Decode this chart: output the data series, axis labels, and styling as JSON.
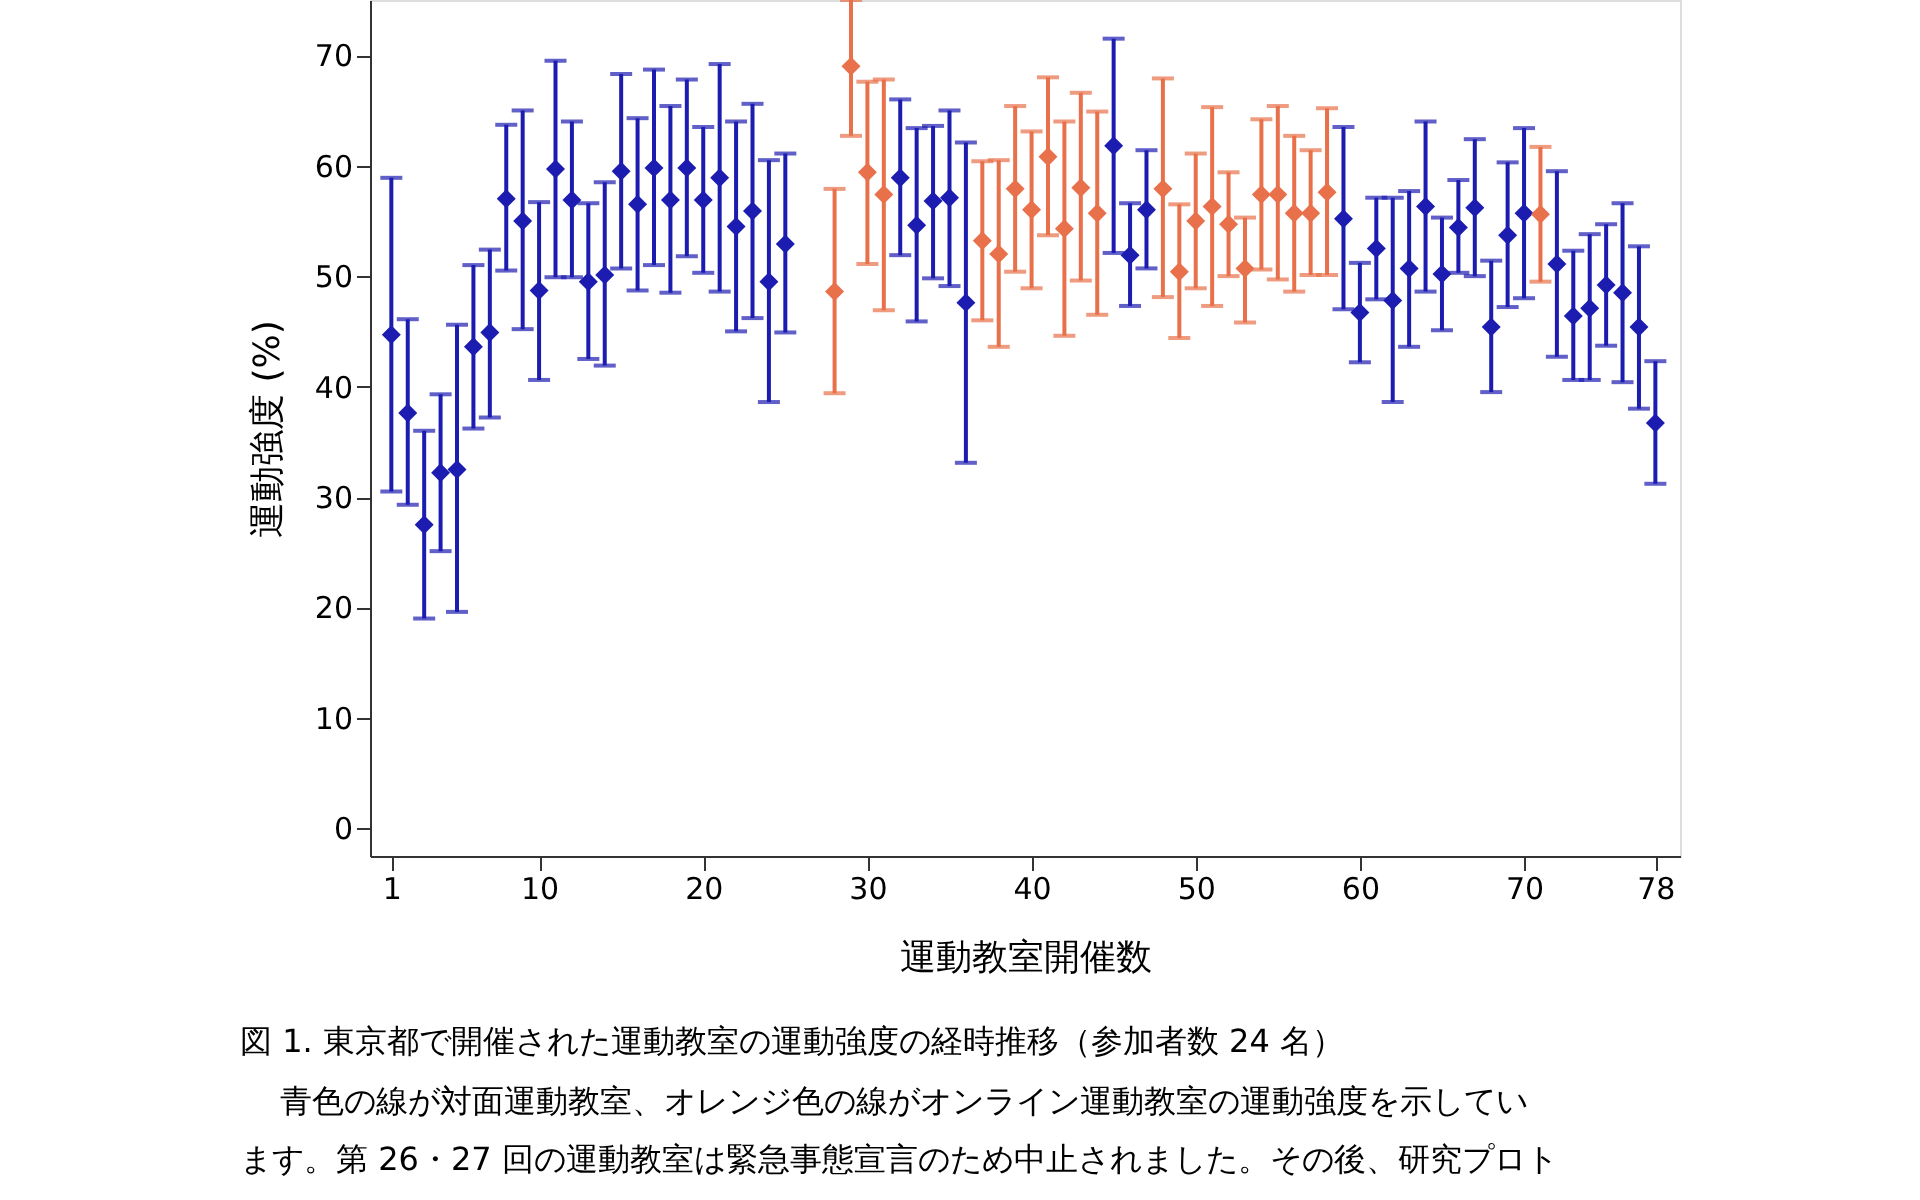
{
  "chart_data": {
    "type": "scatter",
    "title": "図 1. 東京都で開催された運動教室の運動強度の経時推移（参加者数 24 名）",
    "xlabel": "運動教室開催数",
    "ylabel": "運動強度 (%)",
    "annotations": [
      "青色の線が対面運動教室、オレンジ色の線がオンライン運動教室の運動強度を示してい",
      "ます。第 26・27 回の運動教室は緊急事態宣言のため中止されました。その後、研究プロト"
    ],
    "xlim": [
      -0.3,
      79.5
    ],
    "xticks": [
      1,
      10,
      20,
      30,
      40,
      50,
      60,
      70,
      78
    ],
    "ylim": [
      -2.5,
      75
    ],
    "yticks": [
      0,
      10,
      20,
      30,
      40,
      50,
      60,
      70
    ],
    "marker": "diamond",
    "grid": false,
    "series": [
      {
        "color": "#1c1cb0",
        "x": [
          1,
          2,
          3,
          4,
          5,
          6,
          7,
          8,
          9,
          10,
          11,
          12,
          13,
          14,
          15,
          16,
          17,
          18,
          19,
          20,
          21,
          22,
          23,
          24,
          25,
          32,
          33,
          34,
          35,
          36,
          45,
          46,
          47,
          59,
          60,
          61,
          62,
          63,
          64,
          65,
          66,
          67,
          68,
          69,
          70,
          72,
          73,
          74,
          75,
          76,
          77,
          78
        ],
        "values": [
          44.7,
          37.6,
          27.5,
          32.2,
          32.5,
          43.6,
          44.9,
          57.0,
          55.0,
          48.7,
          59.7,
          56.9,
          49.5,
          50.1,
          59.5,
          56.5,
          59.8,
          56.9,
          59.8,
          56.9,
          58.9,
          54.5,
          55.9,
          49.5,
          52.9,
          58.9,
          54.6,
          56.8,
          57.1,
          47.6,
          61.8,
          51.9,
          56.0,
          55.2,
          46.7,
          52.5,
          47.8,
          50.7,
          56.3,
          50.2,
          54.4,
          56.2,
          45.4,
          53.7,
          55.7,
          51.1,
          46.4,
          47.1,
          49.2,
          48.5,
          45.4,
          36.7
        ],
        "errors": [
          [
            30.5,
            58.9
          ],
          [
            29.3,
            46.1
          ],
          [
            19.0,
            36.0
          ],
          [
            25.1,
            39.3
          ],
          [
            19.6,
            45.6
          ],
          [
            36.2,
            51.0
          ],
          [
            37.2,
            52.4
          ],
          [
            50.5,
            63.7
          ],
          [
            45.2,
            65.0
          ],
          [
            40.6,
            56.7
          ],
          [
            49.9,
            69.5
          ],
          [
            49.9,
            64.0
          ],
          [
            42.5,
            56.6
          ],
          [
            41.9,
            58.5
          ],
          [
            50.7,
            68.3
          ],
          [
            48.7,
            64.3
          ],
          [
            51.0,
            68.7
          ],
          [
            48.5,
            65.4
          ],
          [
            51.8,
            67.8
          ],
          [
            50.3,
            63.5
          ],
          [
            48.6,
            69.2
          ],
          [
            45.0,
            64.0
          ],
          [
            46.2,
            65.6
          ],
          [
            38.6,
            60.5
          ],
          [
            44.9,
            61.1
          ],
          [
            51.9,
            66.0
          ],
          [
            45.9,
            63.4
          ],
          [
            49.8,
            63.6
          ],
          [
            49.1,
            65.0
          ],
          [
            33.1,
            62.1
          ],
          [
            52.1,
            71.5
          ],
          [
            47.3,
            56.6
          ],
          [
            50.7,
            61.4
          ],
          [
            47.0,
            63.5
          ],
          [
            42.2,
            51.2
          ],
          [
            47.9,
            57.1
          ],
          [
            38.6,
            57.1
          ],
          [
            43.6,
            57.7
          ],
          [
            48.6,
            64.0
          ],
          [
            45.1,
            55.3
          ],
          [
            50.3,
            58.7
          ],
          [
            50.0,
            62.4
          ],
          [
            39.5,
            51.4
          ],
          [
            47.2,
            60.3
          ],
          [
            48.0,
            63.4
          ],
          [
            42.7,
            59.5
          ],
          [
            40.6,
            52.3
          ],
          [
            40.6,
            53.8
          ],
          [
            43.7,
            54.7
          ],
          [
            40.4,
            56.6
          ],
          [
            38.0,
            52.7
          ],
          [
            31.2,
            42.3
          ]
        ]
      },
      {
        "color": "#e8704a",
        "x": [
          28,
          29,
          30,
          31,
          37,
          38,
          39,
          40,
          41,
          42,
          43,
          44,
          48,
          49,
          50,
          51,
          52,
          53,
          54,
          55,
          56,
          57,
          58,
          71
        ],
        "values": [
          48.6,
          69.0,
          59.4,
          57.4,
          53.2,
          52.0,
          57.9,
          56.0,
          60.8,
          54.3,
          58.0,
          55.7,
          57.9,
          50.4,
          55.0,
          56.3,
          54.7,
          50.7,
          57.4,
          57.4,
          55.7,
          55.7,
          57.6,
          55.6
        ],
        "errors": [
          [
            39.4,
            57.9
          ],
          [
            62.7,
            75
          ],
          [
            51.1,
            67.6
          ],
          [
            46.9,
            67.8
          ],
          [
            46.0,
            60.4
          ],
          [
            43.6,
            60.5
          ],
          [
            50.4,
            65.4
          ],
          [
            48.9,
            63.1
          ],
          [
            53.7,
            68.0
          ],
          [
            44.6,
            64.0
          ],
          [
            49.6,
            66.6
          ],
          [
            46.5,
            64.9
          ],
          [
            48.1,
            67.9
          ],
          [
            44.4,
            56.5
          ],
          [
            48.9,
            61.1
          ],
          [
            47.3,
            65.3
          ],
          [
            50.0,
            59.4
          ],
          [
            45.8,
            55.3
          ],
          [
            50.6,
            64.2
          ],
          [
            49.7,
            65.4
          ],
          [
            48.6,
            62.7
          ],
          [
            50.1,
            61.4
          ],
          [
            50.1,
            65.2
          ],
          [
            49.5,
            61.7
          ]
        ]
      }
    ]
  }
}
